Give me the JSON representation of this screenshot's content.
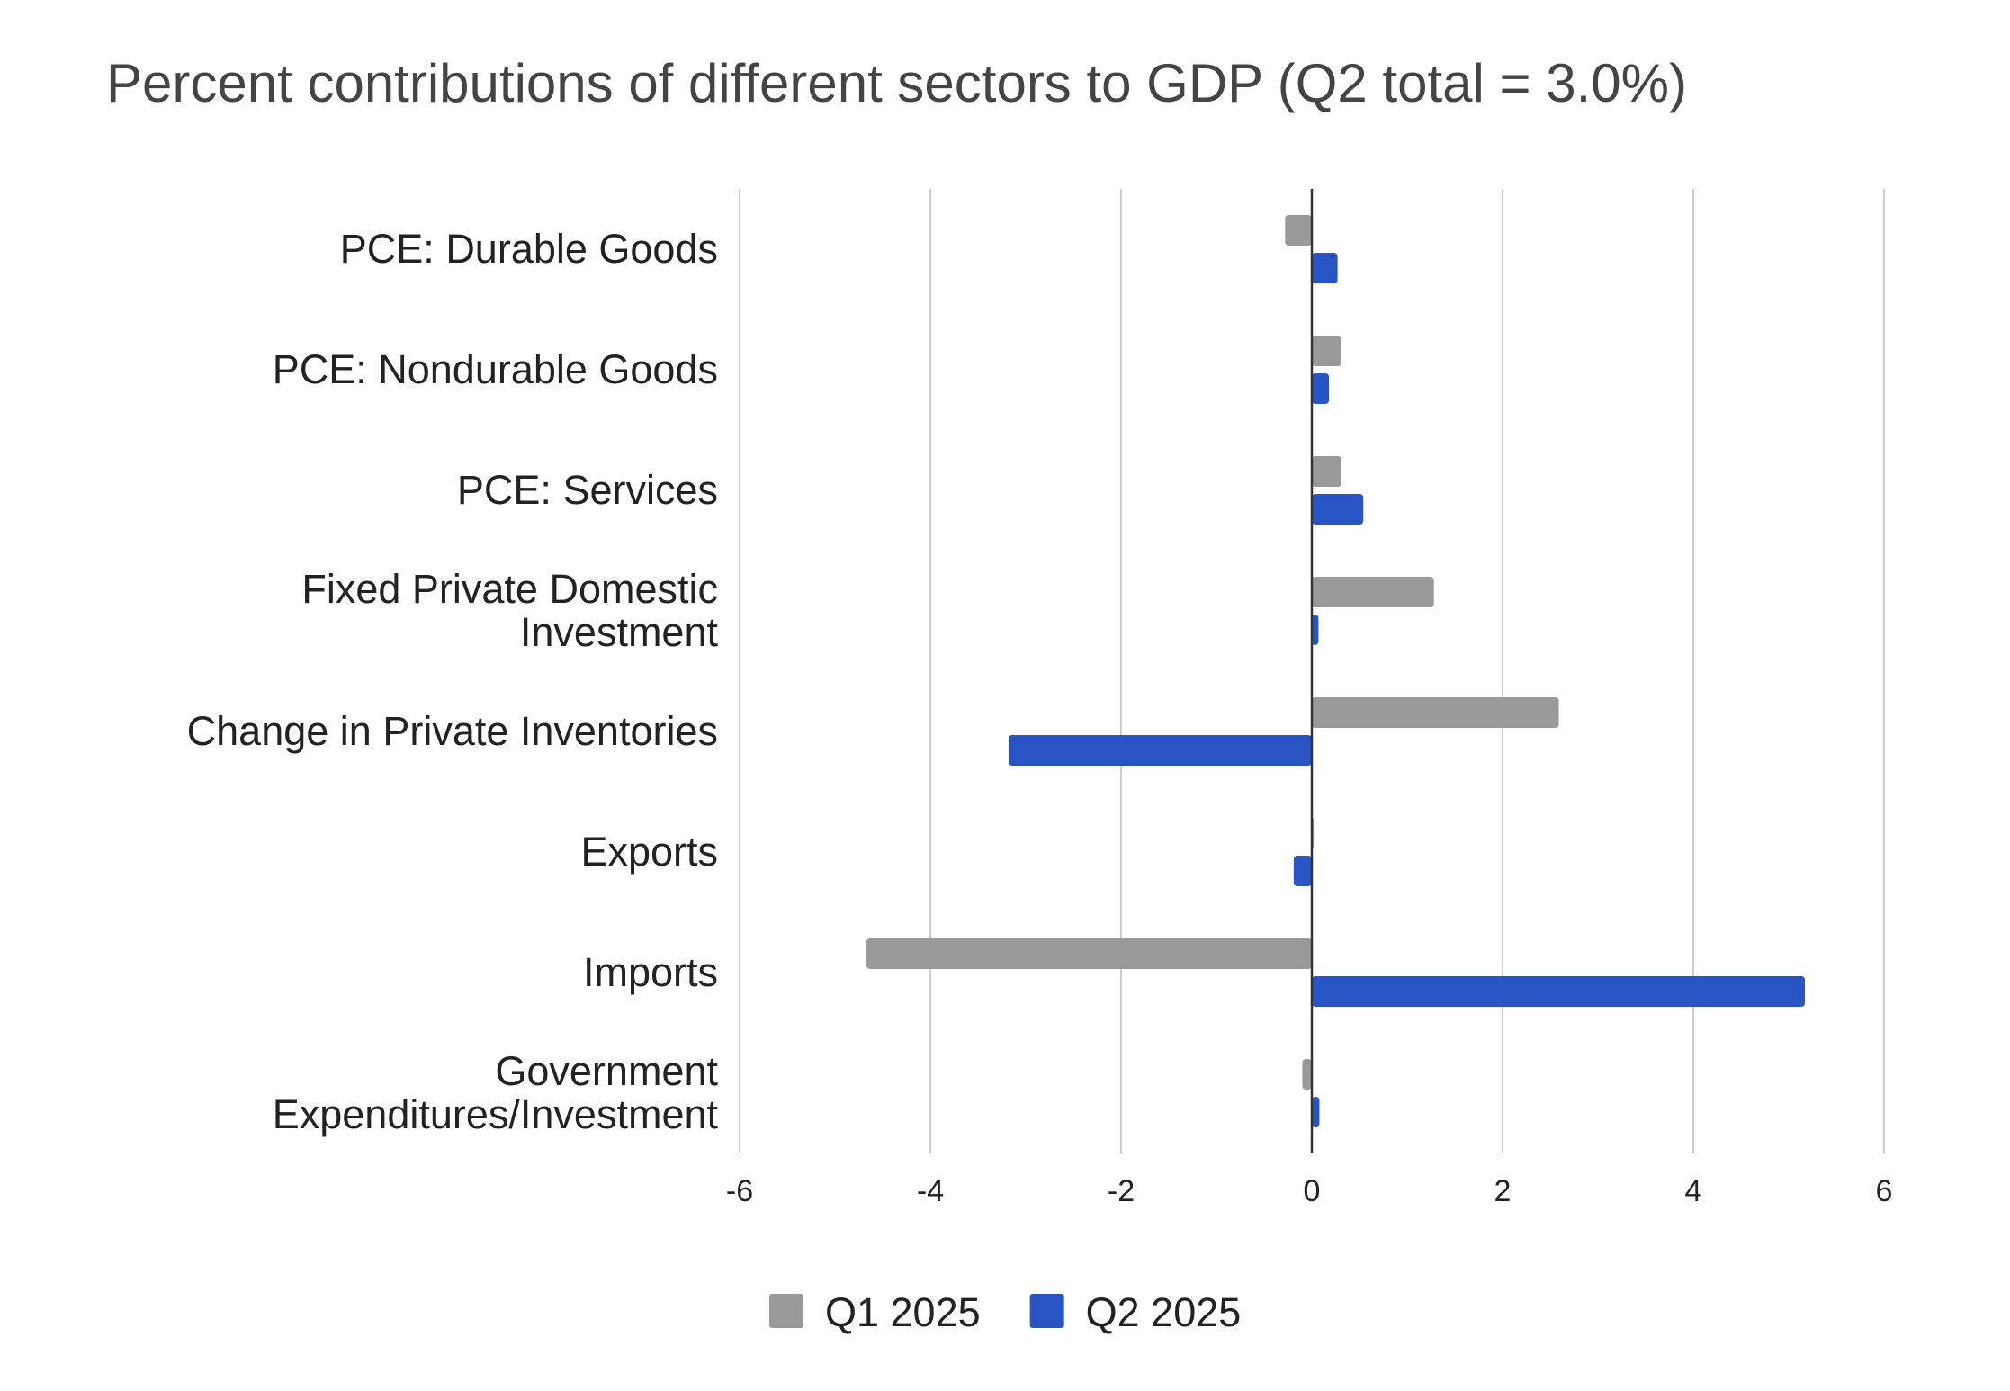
{
  "chart_data": {
    "type": "bar",
    "orientation": "horizontal",
    "title": "Percent contributions of different sectors to GDP (Q2 total = 3.0%)",
    "xlabel": "",
    "ylabel": "",
    "categories": [
      [
        "PCE: Durable Goods"
      ],
      [
        "PCE: Nondurable Goods"
      ],
      [
        "PCE: Services"
      ],
      [
        "Fixed Private Domestic",
        "Investment"
      ],
      [
        "Change in Private Inventories"
      ],
      [
        "Exports"
      ],
      [
        "Imports"
      ],
      [
        "Government",
        "Expenditures/Investment"
      ]
    ],
    "series": [
      {
        "name": "Q1 2025",
        "color": "#999999",
        "values": [
          -0.28,
          0.31,
          0.31,
          1.28,
          2.59,
          0.02,
          -4.67,
          -0.1
        ]
      },
      {
        "name": "Q2 2025",
        "color": "#2854c5",
        "values": [
          0.27,
          0.18,
          0.54,
          0.07,
          -3.18,
          -0.19,
          5.17,
          0.08
        ]
      }
    ],
    "xlim": [
      -6,
      6
    ],
    "xticks": [
      -6,
      -4,
      -2,
      0,
      2,
      4,
      6
    ],
    "grid": true,
    "legend": "bottom"
  }
}
